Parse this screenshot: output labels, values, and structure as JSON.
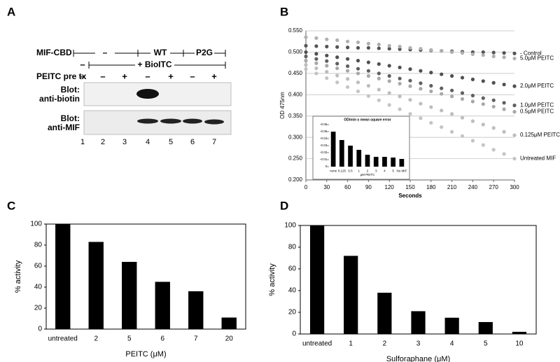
{
  "panel_labels": [
    "A",
    "B",
    "C",
    "D"
  ],
  "blot": {
    "mif_cbd_label": "MIF-CBD",
    "mif_cbd_groups": [
      "–",
      "WT",
      "P2G"
    ],
    "bioitc_minus": "–",
    "bioitc_label": "+ BioITC",
    "peitc_label": "PEITC pre tx",
    "peitc_signs": [
      "–",
      "–",
      "+",
      "–",
      "+",
      "–",
      "+"
    ],
    "blot_labels": [
      [
        "Blot:",
        "anti-biotin"
      ],
      [
        "Blot:",
        "anti-MIF"
      ]
    ],
    "lanes": [
      "1",
      "2",
      "3",
      "4",
      "5",
      "6",
      "7"
    ]
  },
  "chart_data": [
    {
      "type": "scatter",
      "ylabel": "OD 475nm",
      "xlabel": "Seconds",
      "x": [
        0,
        15,
        30,
        45,
        60,
        75,
        90,
        105,
        120,
        135,
        150,
        165,
        180,
        195,
        210,
        225,
        240,
        255,
        270,
        285,
        300
      ],
      "xlim": [
        0,
        300
      ],
      "xticks": [
        0,
        30,
        60,
        90,
        120,
        150,
        180,
        210,
        240,
        270,
        300
      ],
      "ylim": [
        0.2,
        0.55
      ],
      "yticks": [
        {
          "value": 0.2,
          "label": "0.200"
        },
        {
          "value": 0.25,
          "label": "0.250"
        },
        {
          "value": 0.3,
          "label": "0.300"
        },
        {
          "value": 0.35,
          "label": "0.350"
        },
        {
          "value": 0.4,
          "label": "0.400"
        },
        {
          "value": 0.45,
          "label": "0.450"
        },
        {
          "value": 0.5,
          "label": "0.500"
        },
        {
          "value": 0.55,
          "label": "0.550"
        }
      ],
      "grid": true,
      "series": [
        {
          "name": "- Control",
          "color": "#555555",
          "values": [
            0.515,
            0.514,
            0.513,
            0.512,
            0.511,
            0.51,
            0.51,
            0.509,
            0.508,
            0.507,
            0.506,
            0.505,
            0.504,
            0.503,
            0.502,
            0.501,
            0.5,
            0.5,
            0.499,
            0.498,
            0.497
          ]
        },
        {
          "name": "5.0μM PEITC",
          "color": "#b0b0b0",
          "values": [
            0.535,
            0.533,
            0.53,
            0.528,
            0.525,
            0.523,
            0.52,
            0.518,
            0.515,
            0.513,
            0.51,
            0.508,
            0.505,
            0.503,
            0.5,
            0.498,
            0.495,
            0.493,
            0.49,
            0.488,
            0.485
          ]
        },
        {
          "name": "2.0μM PEITC",
          "color": "#505050",
          "values": [
            0.5,
            0.496,
            0.492,
            0.488,
            0.484,
            0.48,
            0.476,
            0.472,
            0.468,
            0.464,
            0.46,
            0.456,
            0.452,
            0.448,
            0.444,
            0.44,
            0.436,
            0.432,
            0.428,
            0.424,
            0.42
          ]
        },
        {
          "name": "1.0μM PEITC",
          "color": "#606060",
          "values": [
            0.49,
            0.484,
            0.479,
            0.473,
            0.467,
            0.461,
            0.456,
            0.45,
            0.444,
            0.438,
            0.433,
            0.427,
            0.421,
            0.415,
            0.41,
            0.404,
            0.398,
            0.392,
            0.387,
            0.381,
            0.375
          ]
        },
        {
          "name": "0.5μM PEITC",
          "color": "#a8a8a8",
          "values": [
            0.48,
            0.474,
            0.468,
            0.462,
            0.456,
            0.45,
            0.444,
            0.438,
            0.432,
            0.426,
            0.42,
            0.414,
            0.408,
            0.402,
            0.396,
            0.39,
            0.384,
            0.378,
            0.372,
            0.366,
            0.36
          ]
        },
        {
          "name": "0.125μM PEITC",
          "color": "#bdbdbd",
          "values": [
            0.47,
            0.462,
            0.454,
            0.445,
            0.437,
            0.429,
            0.421,
            0.412,
            0.404,
            0.396,
            0.388,
            0.379,
            0.371,
            0.363,
            0.355,
            0.346,
            0.338,
            0.33,
            0.322,
            0.313,
            0.305
          ]
        },
        {
          "name": "Untreated MIF",
          "color": "#c4c4c4",
          "values": [
            0.46,
            0.45,
            0.439,
            0.429,
            0.418,
            0.408,
            0.397,
            0.387,
            0.376,
            0.366,
            0.355,
            0.345,
            0.334,
            0.324,
            0.313,
            0.303,
            0.292,
            0.282,
            0.271,
            0.261,
            0.25
          ]
        }
      ]
    },
    {
      "type": "bar",
      "title": "OD/min ± mean square error",
      "xlabel": "μM PEITC",
      "categories": [
        "none",
        "0.125",
        "0.5",
        "1",
        "2",
        "3",
        "4",
        "5",
        "No MIF"
      ],
      "values": [
        -0.05,
        -0.038,
        -0.03,
        -0.024,
        -0.017,
        -0.014,
        -0.014,
        -0.013,
        -0.011
      ],
      "ylim": [
        0,
        -0.06
      ],
      "yticks": [
        0,
        -0.01,
        -0.02,
        -0.03,
        -0.04,
        -0.05,
        -0.06
      ],
      "color": "#000000"
    },
    {
      "type": "bar",
      "ylabel": "% activity",
      "xlabel": "PEITC (μM)",
      "categories": [
        "untreated",
        "2",
        "5",
        "6",
        "7",
        "20"
      ],
      "values": [
        100,
        83,
        64,
        45,
        36,
        11
      ],
      "ylim": [
        0,
        100
      ],
      "yticks": [
        0,
        20,
        40,
        60,
        80,
        100
      ],
      "color": "#000000"
    },
    {
      "type": "bar",
      "ylabel": "% activity",
      "xlabel": "Sulforaphane (μM)",
      "categories": [
        "untreated",
        "1",
        "2",
        "3",
        "4",
        "5",
        "10"
      ],
      "values": [
        100,
        72,
        38,
        21,
        15,
        11,
        2
      ],
      "ylim": [
        0,
        100
      ],
      "yticks": [
        0,
        20,
        40,
        60,
        80,
        100
      ],
      "color": "#000000"
    }
  ]
}
